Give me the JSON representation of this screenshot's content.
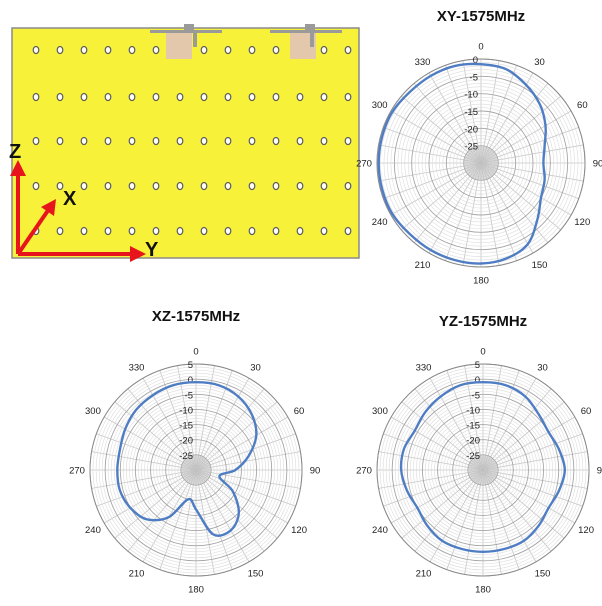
{
  "board": {
    "axis_labels": {
      "z": "Z",
      "x": "X",
      "y": "Y"
    },
    "colors": {
      "board": "#f7f13a",
      "border": "#8a8a8a",
      "axis": "#e8141c",
      "hole": "#5c5c5c",
      "pad": "#e3c8ab"
    }
  },
  "chart_data": [
    {
      "type": "polar-line",
      "title": "XY-1575MHz",
      "r_ticks": [
        0,
        -5,
        -10,
        -15,
        -20,
        -25
      ],
      "rlim": [
        -30,
        0
      ],
      "theta_ticks": [
        "0",
        "30",
        "60",
        "90",
        "120",
        "150",
        "180",
        "210",
        "240",
        "270",
        "300",
        "330"
      ],
      "theta_step_deg": 10,
      "line_color": "#4f7dc4",
      "series": [
        {
          "angles": [
            0,
            15,
            30,
            45,
            60,
            75,
            90,
            105,
            120,
            135,
            150,
            165,
            180,
            195,
            210,
            225,
            240,
            255,
            270,
            285,
            300,
            315,
            330,
            345
          ],
          "values": [
            -1.5,
            -2,
            -4,
            -6,
            -8.5,
            -11,
            -12,
            -11,
            -10,
            -7,
            -3,
            -1.5,
            -1,
            -1,
            -1,
            -1,
            -0.5,
            -0.5,
            -0.5,
            -0.5,
            -0.5,
            -1,
            -1,
            -1
          ]
        }
      ]
    },
    {
      "type": "polar-line",
      "title": "XZ-1575MHz",
      "r_ticks": [
        5,
        0,
        -5,
        -10,
        -15,
        -20,
        -25
      ],
      "rlim": [
        -30,
        5
      ],
      "theta_ticks": [
        "0",
        "30",
        "60",
        "90",
        "120",
        "150",
        "180",
        "210",
        "240",
        "270",
        "300",
        "330"
      ],
      "theta_step_deg": 10,
      "line_color": "#4f7dc4",
      "series": [
        {
          "angles": [
            0,
            15,
            30,
            45,
            60,
            75,
            90,
            105,
            120,
            135,
            150,
            165,
            180,
            195,
            210,
            225,
            240,
            255,
            270,
            285,
            300,
            315,
            330,
            345
          ],
          "values": [
            -1,
            -1,
            -2,
            -4,
            -7,
            -12,
            -17,
            -22,
            -16,
            -10,
            -7,
            -8,
            -17,
            -20,
            -12,
            -7,
            -5,
            -4,
            -4,
            -4,
            -3,
            -2,
            -1.5,
            -1
          ]
        }
      ]
    },
    {
      "type": "polar-line",
      "title": "YZ-1575MHz",
      "r_ticks": [
        5,
        0,
        -5,
        -10,
        -15,
        -20,
        -25
      ],
      "rlim": [
        -30,
        5
      ],
      "theta_ticks": [
        "0",
        "30",
        "60",
        "90",
        "120",
        "150",
        "180",
        "210",
        "240",
        "270",
        "300",
        "330"
      ],
      "theta_step_deg": 10,
      "line_color": "#4f7dc4",
      "series": [
        {
          "angles": [
            0,
            15,
            30,
            45,
            60,
            75,
            90,
            105,
            120,
            135,
            150,
            165,
            180,
            195,
            210,
            225,
            240,
            255,
            270,
            285,
            300,
            315,
            330,
            345
          ],
          "values": [
            -1,
            -1,
            -2,
            -4,
            -5,
            -4,
            -3,
            -4,
            -5,
            -4,
            -3,
            -3,
            -3,
            -3,
            -3,
            -4,
            -5,
            -4,
            -3,
            -3,
            -4,
            -3,
            -2,
            -1
          ]
        }
      ]
    }
  ]
}
